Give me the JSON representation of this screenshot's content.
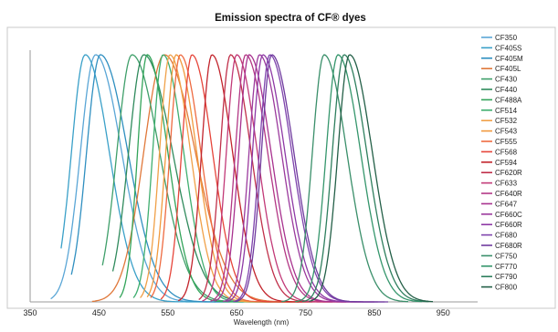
{
  "chart_data": {
    "type": "line",
    "title": "Emission spectra of CF® dyes",
    "xlabel": "Wavelength (nm)",
    "ylabel": "",
    "xlim": [
      350,
      1000
    ],
    "ylim": [
      0,
      1
    ],
    "x_ticks": [
      350,
      450,
      550,
      650,
      750,
      850,
      950
    ],
    "grid": false,
    "legend_position": "right",
    "series": [
      {
        "name": "CF350",
        "color": "#5aa6d6",
        "peak": 445,
        "width_left": 22,
        "width_right": 38,
        "start": 380,
        "end": 640
      },
      {
        "name": "CF405S",
        "color": "#3aa0c8",
        "peak": 430,
        "width_left": 20,
        "width_right": 35,
        "start": 395,
        "end": 620
      },
      {
        "name": "CF405M",
        "color": "#2f8fc0",
        "peak": 452,
        "width_left": 20,
        "width_right": 40,
        "start": 410,
        "end": 660
      },
      {
        "name": "CF405L",
        "color": "#e0783a",
        "peak": 545,
        "width_left": 30,
        "width_right": 45,
        "start": 440,
        "end": 730
      },
      {
        "name": "CF430",
        "color": "#3f9f6a",
        "peak": 498,
        "width_left": 22,
        "width_right": 40,
        "start": 455,
        "end": 720
      },
      {
        "name": "CF440",
        "color": "#2f8a5c",
        "peak": 515,
        "width_left": 22,
        "width_right": 42,
        "start": 470,
        "end": 740
      },
      {
        "name": "CF488A",
        "color": "#33a45a",
        "peak": 520,
        "width_left": 14,
        "width_right": 30,
        "start": 480,
        "end": 700
      },
      {
        "name": "CF514",
        "color": "#3fae6f",
        "peak": 543,
        "width_left": 15,
        "width_right": 30,
        "start": 500,
        "end": 720
      },
      {
        "name": "CF532",
        "color": "#f0a048",
        "peak": 553,
        "width_left": 15,
        "width_right": 30,
        "start": 510,
        "end": 730
      },
      {
        "name": "CF543",
        "color": "#f19a3e",
        "peak": 562,
        "width_left": 15,
        "width_right": 30,
        "start": 520,
        "end": 740
      },
      {
        "name": "CF555",
        "color": "#ee6a40",
        "peak": 568,
        "width_left": 15,
        "width_right": 30,
        "start": 525,
        "end": 745
      },
      {
        "name": "CF568",
        "color": "#e6453a",
        "peak": 585,
        "width_left": 15,
        "width_right": 30,
        "start": 540,
        "end": 760
      },
      {
        "name": "CF594",
        "color": "#c2242c",
        "peak": 614,
        "width_left": 15,
        "width_right": 30,
        "start": 565,
        "end": 790
      },
      {
        "name": "CF620R",
        "color": "#c0304a",
        "peak": 641,
        "width_left": 15,
        "width_right": 30,
        "start": 595,
        "end": 810
      },
      {
        "name": "CF633",
        "color": "#c23a78",
        "peak": 650,
        "width_left": 15,
        "width_right": 30,
        "start": 600,
        "end": 820
      },
      {
        "name": "CF640R",
        "color": "#b33785",
        "peak": 663,
        "width_left": 15,
        "width_right": 32,
        "start": 612,
        "end": 830
      },
      {
        "name": "CF647",
        "color": "#a8328f",
        "peak": 668,
        "width_left": 15,
        "width_right": 32,
        "start": 618,
        "end": 835
      },
      {
        "name": "CF660C",
        "color": "#9b3a9d",
        "peak": 683,
        "width_left": 15,
        "width_right": 32,
        "start": 630,
        "end": 850
      },
      {
        "name": "CF660R",
        "color": "#8e3aa5",
        "peak": 688,
        "width_left": 15,
        "width_right": 32,
        "start": 635,
        "end": 855
      },
      {
        "name": "CF680",
        "color": "#7f44ad",
        "peak": 698,
        "width_left": 15,
        "width_right": 32,
        "start": 645,
        "end": 865
      },
      {
        "name": "CF680R",
        "color": "#6f3a9e",
        "peak": 701,
        "width_left": 15,
        "width_right": 32,
        "start": 648,
        "end": 870
      },
      {
        "name": "CF750",
        "color": "#3a8f6a",
        "peak": 777,
        "width_left": 17,
        "width_right": 33,
        "start": 715,
        "end": 900
      },
      {
        "name": "CF770",
        "color": "#35966c",
        "peak": 797,
        "width_left": 17,
        "width_right": 33,
        "start": 735,
        "end": 920
      },
      {
        "name": "CF790",
        "color": "#2e7f5e",
        "peak": 806,
        "width_left": 17,
        "width_right": 33,
        "start": 745,
        "end": 930
      },
      {
        "name": "CF800",
        "color": "#235f47",
        "peak": 814,
        "width_left": 17,
        "width_right": 33,
        "start": 755,
        "end": 935
      }
    ]
  }
}
